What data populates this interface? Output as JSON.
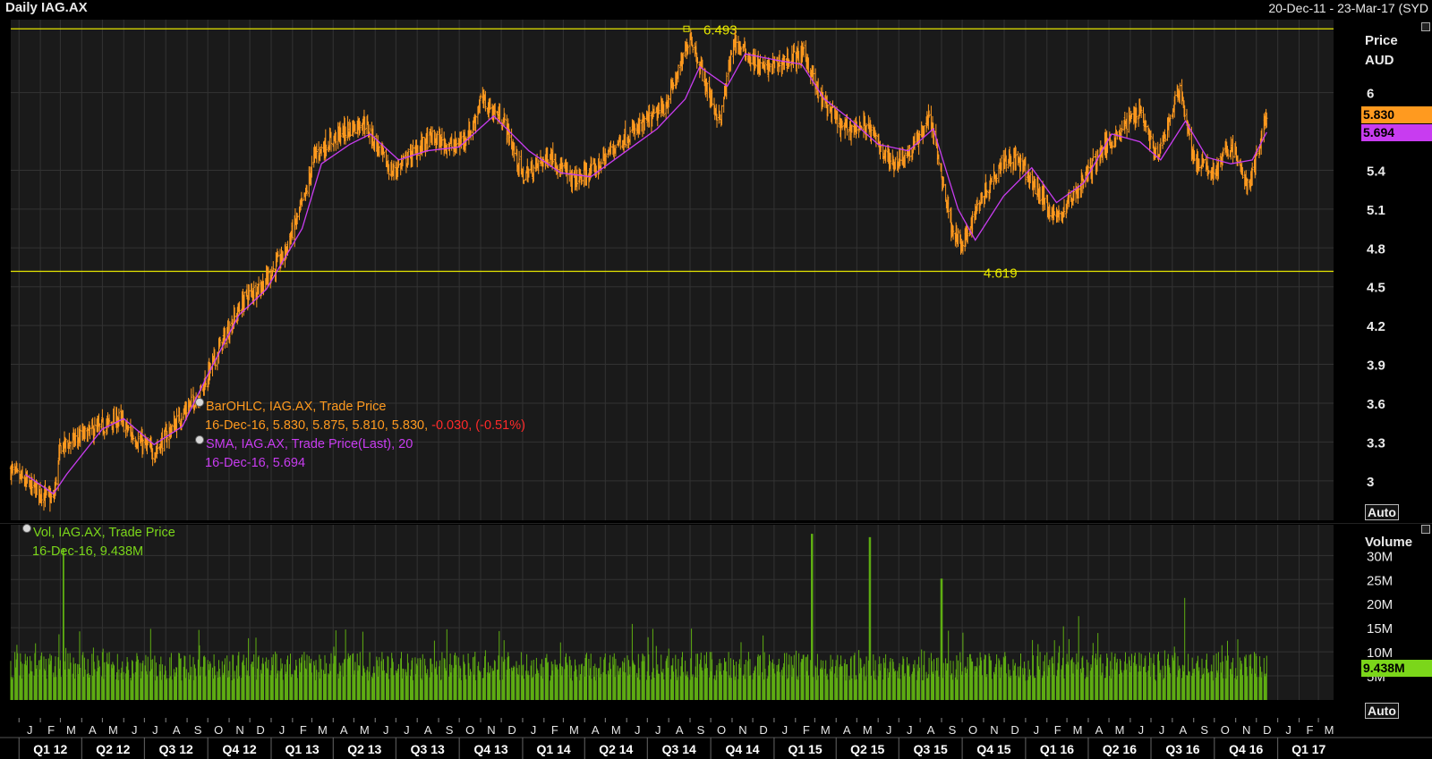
{
  "header": {
    "title": "Daily IAG.AX",
    "date_range": "20-Dec-11 - 23-Mar-17 (SYD"
  },
  "price_panel": {
    "unit_line1": "Price",
    "unit_line2": "AUD",
    "auto_label": "Auto",
    "last_price": "5.830",
    "last_sma": "5.694",
    "high_line_label": "6.493",
    "low_line_label": "4.619",
    "legend": {
      "bar_name": "BarOHLC, IAG.AX, Trade Price",
      "bar_values": "16-Dec-16, 5.830, 5.875, 5.810, 5.830, ",
      "bar_change": "-0.030, (-0.51%)",
      "sma_name": "SMA, IAG.AX, Trade Price(Last),  20",
      "sma_values": "16-Dec-16, 5.694"
    }
  },
  "volume_panel": {
    "unit_label": "Volume",
    "auto_label": "Auto",
    "last_volume": "9.438M",
    "legend": {
      "name": "Vol, IAG.AX, Trade Price",
      "values": "16-Dec-16, 9.438M"
    }
  },
  "colors": {
    "background": "#000000",
    "panel_bg": "#1a1a1a",
    "price_bars": "#ff9a1f",
    "sma": "#c83cf0",
    "volume": "#5fae12",
    "reference_lines": "#e6e600",
    "grid": "#333333"
  },
  "chart_data": [
    {
      "type": "line",
      "title": "Daily IAG.AX",
      "ylabel": "Price AUD",
      "ylim": [
        2.75,
        6.55
      ],
      "y_ticks": [
        3,
        3.3,
        3.6,
        3.9,
        4.2,
        4.5,
        4.8,
        5.1,
        5.4,
        6
      ],
      "grid": true,
      "x_range": [
        "2011-12-20",
        "2017-03-23"
      ],
      "reference_lines": [
        6.493,
        4.619
      ],
      "series": [
        {
          "name": "BarOHLC, IAG.AX, Trade Price",
          "style": "ohlc",
          "x": [
            "2011-12-20",
            "2012-01-15",
            "2012-02-20",
            "2012-03-01",
            "2012-04-15",
            "2012-05-25",
            "2012-06-15",
            "2012-07-15",
            "2012-08-20",
            "2012-09-20",
            "2012-10-20",
            "2012-11-25",
            "2012-12-20",
            "2013-01-20",
            "2013-02-20",
            "2013-03-05",
            "2013-04-10",
            "2013-05-15",
            "2013-06-25",
            "2013-07-20",
            "2013-08-20",
            "2013-09-25",
            "2013-10-20",
            "2013-11-01",
            "2013-12-05",
            "2014-01-01",
            "2014-02-10",
            "2014-03-15",
            "2014-04-15",
            "2014-05-20",
            "2014-06-25",
            "2014-07-25",
            "2014-08-20",
            "2014-09-01",
            "2014-10-01",
            "2014-10-15",
            "2014-11-03",
            "2014-12-15",
            "2015-01-20",
            "2015-02-15",
            "2015-03-05",
            "2015-04-10",
            "2015-05-15",
            "2015-06-20",
            "2015-07-20",
            "2015-08-15",
            "2015-09-15",
            "2015-10-01",
            "2015-10-25",
            "2015-12-01",
            "2015-12-20",
            "2016-02-15",
            "2016-03-20",
            "2016-04-20",
            "2016-05-20",
            "2016-06-15",
            "2016-07-10",
            "2016-08-12",
            "2016-09-01",
            "2016-09-30",
            "2016-10-25",
            "2016-11-20",
            "2016-12-16"
          ],
          "values": [
            3.08,
            2.97,
            2.85,
            3.26,
            3.38,
            3.48,
            3.34,
            3.22,
            3.48,
            3.68,
            4.05,
            4.42,
            4.52,
            4.75,
            5.21,
            5.52,
            5.68,
            5.78,
            5.38,
            5.5,
            5.65,
            5.58,
            5.72,
            5.95,
            5.78,
            5.35,
            5.52,
            5.32,
            5.4,
            5.62,
            5.75,
            5.88,
            6.22,
            6.45,
            5.95,
            5.78,
            6.4,
            6.18,
            6.25,
            6.3,
            6.0,
            5.72,
            5.75,
            5.45,
            5.55,
            5.82,
            4.98,
            4.8,
            5.15,
            5.5,
            5.48,
            5.02,
            5.28,
            5.55,
            5.72,
            5.88,
            5.48,
            6.05,
            5.48,
            5.38,
            5.6,
            5.25,
            5.83
          ]
        },
        {
          "name": "SMA, IAG.AX, Trade Price(Last),  20",
          "style": "line",
          "x": [
            "2012-01-10",
            "2012-02-20",
            "2012-03-10",
            "2012-05-01",
            "2012-06-01",
            "2012-07-15",
            "2012-08-25",
            "2012-10-01",
            "2012-11-15",
            "2012-12-25",
            "2013-02-15",
            "2013-03-15",
            "2013-04-25",
            "2013-05-25",
            "2013-07-05",
            "2013-08-15",
            "2013-10-01",
            "2013-11-20",
            "2014-01-10",
            "2014-02-25",
            "2014-04-10",
            "2014-06-01",
            "2014-07-15",
            "2014-08-25",
            "2014-09-15",
            "2014-10-25",
            "2014-11-20",
            "2015-01-05",
            "2015-02-10",
            "2015-03-15",
            "2015-04-20",
            "2015-06-01",
            "2015-07-15",
            "2015-08-20",
            "2015-09-25",
            "2015-10-20",
            "2015-11-30",
            "2016-01-10",
            "2016-02-15",
            "2016-03-25",
            "2016-05-05",
            "2016-06-15",
            "2016-07-15",
            "2016-08-20",
            "2016-09-20",
            "2016-10-25",
            "2016-11-25",
            "2016-12-16"
          ],
          "values": [
            3.05,
            2.9,
            3.05,
            3.4,
            3.48,
            3.28,
            3.42,
            3.82,
            4.28,
            4.48,
            4.95,
            5.45,
            5.6,
            5.68,
            5.48,
            5.55,
            5.58,
            5.82,
            5.55,
            5.38,
            5.35,
            5.55,
            5.72,
            5.95,
            6.2,
            6.05,
            6.3,
            6.25,
            6.22,
            5.95,
            5.8,
            5.6,
            5.55,
            5.72,
            5.1,
            4.86,
            5.2,
            5.42,
            5.15,
            5.3,
            5.68,
            5.62,
            5.48,
            5.78,
            5.5,
            5.45,
            5.48,
            5.694
          ]
        }
      ]
    },
    {
      "type": "bar",
      "title": "Vol, IAG.AX, Trade Price",
      "ylabel": "Volume",
      "ylim": [
        0,
        36
      ],
      "y_unit": "M",
      "y_ticks": [
        5,
        10,
        15,
        20,
        25,
        30
      ],
      "grid": true,
      "series": [
        {
          "name": "Vol, IAG.AX, Trade Price",
          "x": [
            "2011-12-20",
            "2012-01-25",
            "2012-03-05",
            "2012-04-20",
            "2012-06-10",
            "2012-08-01",
            "2012-09-20",
            "2012-11-10",
            "2012-12-25",
            "2013-02-15",
            "2013-04-05",
            "2013-05-25",
            "2013-07-15",
            "2013-09-05",
            "2013-10-25",
            "2013-12-15",
            "2014-02-05",
            "2014-03-25",
            "2014-05-15",
            "2014-07-05",
            "2014-08-25",
            "2014-10-15",
            "2014-12-05",
            "2015-01-25",
            "2015-02-25",
            "2015-04-15",
            "2015-05-20",
            "2015-07-10",
            "2015-09-01",
            "2015-10-20",
            "2015-12-10",
            "2016-01-30",
            "2016-03-20",
            "2016-05-10",
            "2016-06-30",
            "2016-08-20",
            "2016-10-10",
            "2016-11-30",
            "2016-12-16"
          ],
          "values": [
            6.5,
            7.8,
            31.5,
            8.2,
            7.1,
            9.5,
            8.8,
            7.6,
            6.9,
            8.2,
            9.8,
            7.4,
            8.6,
            7.9,
            9.1,
            7.2,
            8.4,
            9.6,
            7.8,
            8.2,
            9.4,
            8.8,
            9.2,
            10.5,
            34.5,
            9.8,
            33.8,
            10.2,
            25.2,
            11.5,
            8.8,
            9.6,
            8.4,
            9.2,
            10.1,
            21.2,
            8.6,
            9.4,
            9.438
          ]
        }
      ]
    }
  ],
  "x_axis": {
    "months": [
      "J",
      "F",
      "M",
      "A",
      "M",
      "J",
      "J",
      "A",
      "S",
      "O",
      "N",
      "D",
      "J",
      "F",
      "M",
      "A",
      "M",
      "J",
      "J",
      "A",
      "S",
      "O",
      "N",
      "D",
      "J",
      "F",
      "M",
      "A",
      "M",
      "J",
      "J",
      "A",
      "S",
      "O",
      "N",
      "D",
      "J",
      "F",
      "M",
      "A",
      "M",
      "J",
      "J",
      "A",
      "S",
      "O",
      "N",
      "D",
      "J",
      "F",
      "M",
      "A",
      "M",
      "J",
      "J",
      "A",
      "S",
      "O",
      "N",
      "D",
      "J",
      "F",
      "M"
    ],
    "quarters": [
      "Q1 12",
      "Q2 12",
      "Q3 12",
      "Q4 12",
      "Q1 13",
      "Q2 13",
      "Q3 13",
      "Q4 13",
      "Q1 14",
      "Q2 14",
      "Q3 14",
      "Q4 14",
      "Q1 15",
      "Q2 15",
      "Q3 15",
      "Q4 15",
      "Q1 16",
      "Q2 16",
      "Q3 16",
      "Q4 16",
      "Q1 17"
    ]
  }
}
